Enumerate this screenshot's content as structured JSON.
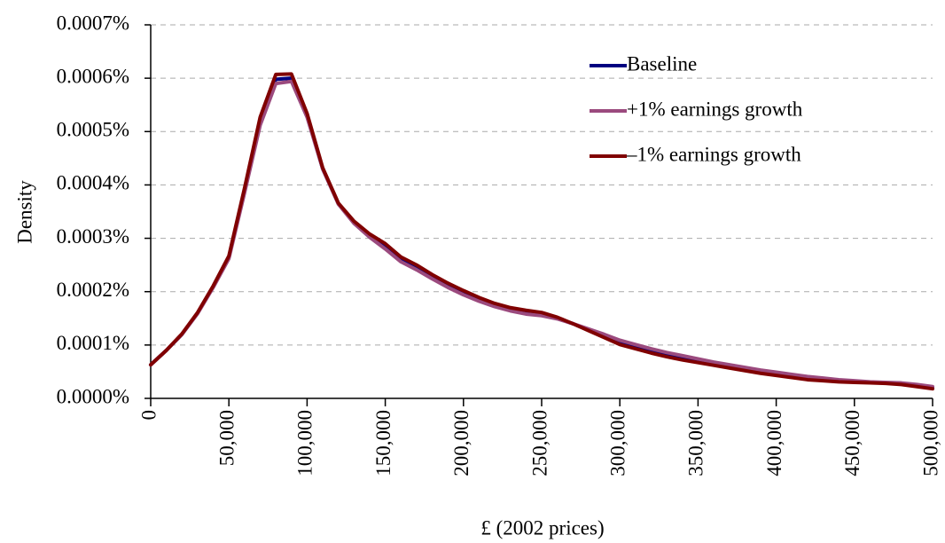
{
  "chart_data": {
    "type": "line",
    "x_label": "£ (2002 prices)",
    "y_label": "Density",
    "xlim": [
      0,
      500000
    ],
    "xticks": [
      0,
      {
        "value": 50000,
        "label": "50,000"
      },
      {
        "value": 100000,
        "label": "100,000"
      },
      {
        "value": 150000,
        "label": "150,000"
      },
      {
        "value": 200000,
        "label": "200,000"
      },
      {
        "value": 250000,
        "label": "250,000"
      },
      {
        "value": 300000,
        "label": "300,000"
      },
      {
        "value": 350000,
        "label": "350,000"
      },
      {
        "value": 400000,
        "label": "400,000"
      },
      {
        "value": 450000,
        "label": "450,000"
      },
      {
        "value": 500000,
        "label": "500,000"
      }
    ],
    "ylim": [
      0,
      0.0007
    ],
    "yticks": [
      {
        "value": 0,
        "label": "0.0000%"
      },
      {
        "value": 0.0001,
        "label": "0.0001%"
      },
      {
        "value": 0.0002,
        "label": "0.0002%"
      },
      {
        "value": 0.0003,
        "label": "0.0003%"
      },
      {
        "value": 0.0004,
        "label": "0.0004%"
      },
      {
        "value": 0.0005,
        "label": "0.0005%"
      },
      {
        "value": 0.0006,
        "label": "0.0006%"
      },
      {
        "value": 0.0007,
        "label": "0.0007%"
      }
    ],
    "grid": true,
    "legend": "upper right",
    "x": [
      0,
      10000,
      20000,
      30000,
      40000,
      50000,
      60000,
      70000,
      80000,
      90000,
      100000,
      110000,
      120000,
      130000,
      140000,
      150000,
      160000,
      170000,
      180000,
      190000,
      200000,
      210000,
      220000,
      230000,
      240000,
      250000,
      260000,
      270000,
      280000,
      290000,
      300000,
      310000,
      320000,
      330000,
      340000,
      350000,
      360000,
      370000,
      380000,
      390000,
      400000,
      410000,
      420000,
      430000,
      440000,
      450000,
      460000,
      470000,
      480000,
      490000,
      500000
    ],
    "series": [
      {
        "name": "Baseline",
        "color": "#000080",
        "values": [
          6.3e-05,
          9e-05,
          0.00012,
          0.00016,
          0.00021,
          0.000265,
          0.00039,
          0.00052,
          0.000598,
          0.0006,
          0.00053,
          0.00043,
          0.000365,
          0.00033,
          0.000305,
          0.000285,
          0.00026,
          0.000245,
          0.000228,
          0.000212,
          0.000198,
          0.000185,
          0.000175,
          0.000167,
          0.000162,
          0.000158,
          0.00015,
          0.00014,
          0.000128,
          0.000117,
          0.000105,
          9.7e-05,
          8.9e-05,
          8.2e-05,
          7.6e-05,
          7e-05,
          6.5e-05,
          6e-05,
          5.5e-05,
          5e-05,
          4.6e-05,
          4.2e-05,
          3.8e-05,
          3.5e-05,
          3.3e-05,
          3.1e-05,
          3e-05,
          2.9e-05,
          2.7e-05,
          2.4e-05,
          2e-05
        ]
      },
      {
        "name": "+1% earnings growth",
        "color": "#9b4a7e",
        "values": [
          6.3e-05,
          9e-05,
          0.00012,
          0.000159,
          0.000208,
          0.000262,
          0.000385,
          0.000512,
          0.00059,
          0.000594,
          0.000527,
          0.00043,
          0.000364,
          0.000328,
          0.000302,
          0.00028,
          0.000256,
          0.000241,
          0.000224,
          0.000208,
          0.000194,
          0.000182,
          0.000172,
          0.000164,
          0.000158,
          0.000155,
          0.000149,
          0.00014,
          0.00013,
          0.00012,
          0.000109,
          0.000101,
          9.3e-05,
          8.6e-05,
          8e-05,
          7.4e-05,
          6.8e-05,
          6.3e-05,
          5.8e-05,
          5.3e-05,
          4.9e-05,
          4.5e-05,
          4.1e-05,
          3.8e-05,
          3.5e-05,
          3.3e-05,
          3.1e-05,
          3e-05,
          2.9e-05,
          2.6e-05,
          2.2e-05
        ]
      },
      {
        "name": "–1% earnings growth",
        "color": "#800000",
        "values": [
          6.3e-05,
          9e-05,
          0.000121,
          0.000161,
          0.000211,
          0.000267,
          0.000394,
          0.000527,
          0.000607,
          0.000608,
          0.000534,
          0.000432,
          0.000366,
          0.000332,
          0.000308,
          0.00029,
          0.000265,
          0.00025,
          0.000232,
          0.000216,
          0.000202,
          0.000189,
          0.000178,
          0.00017,
          0.000165,
          0.000161,
          0.000152,
          0.00014,
          0.000127,
          0.000114,
          0.000101,
          9.3e-05,
          8.5e-05,
          7.8e-05,
          7.2e-05,
          6.7e-05,
          6.2e-05,
          5.7e-05,
          5.2e-05,
          4.7e-05,
          4.3e-05,
          3.9e-05,
          3.5e-05,
          3.3e-05,
          3.1e-05,
          3e-05,
          2.9e-05,
          2.8e-05,
          2.6e-05,
          2.2e-05,
          1.8e-05
        ]
      }
    ]
  }
}
